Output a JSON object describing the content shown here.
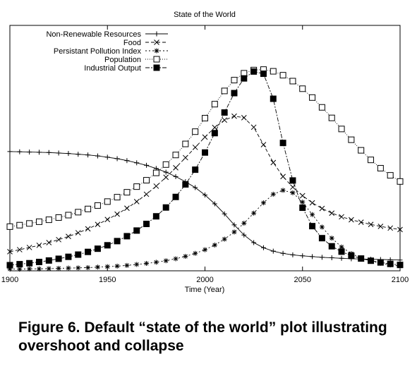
{
  "chart_data": {
    "type": "line",
    "title": "State of the World",
    "xlabel": "Time (Year)",
    "ylabel": "",
    "xlim": [
      1900,
      2100
    ],
    "ylim": [
      0,
      1
    ],
    "grid": false,
    "legend_position": "top-left",
    "x_ticks": [
      1900,
      1950,
      2000,
      2050,
      2100
    ],
    "x": [
      1900,
      1905,
      1910,
      1915,
      1920,
      1925,
      1930,
      1935,
      1940,
      1945,
      1950,
      1955,
      1960,
      1965,
      1970,
      1975,
      1980,
      1985,
      1990,
      1995,
      2000,
      2005,
      2010,
      2015,
      2020,
      2025,
      2030,
      2035,
      2040,
      2045,
      2050,
      2055,
      2060,
      2065,
      2070,
      2075,
      2080,
      2085,
      2090,
      2095,
      2100
    ],
    "series": [
      {
        "name": "Non-Renewable Resources",
        "marker": "plus",
        "values": [
          0.486,
          0.485,
          0.484,
          0.483,
          0.482,
          0.48,
          0.478,
          0.475,
          0.472,
          0.468,
          0.463,
          0.457,
          0.449,
          0.44,
          0.43,
          0.417,
          0.402,
          0.384,
          0.363,
          0.339,
          0.309,
          0.273,
          0.232,
          0.187,
          0.146,
          0.115,
          0.094,
          0.08,
          0.071,
          0.065,
          0.061,
          0.058,
          0.055,
          0.053,
          0.051,
          0.049,
          0.048,
          0.047,
          0.046,
          0.045,
          0.044
        ]
      },
      {
        "name": "Food",
        "marker": "cross",
        "values": [
          0.078,
          0.086,
          0.095,
          0.104,
          0.115,
          0.127,
          0.14,
          0.155,
          0.171,
          0.189,
          0.209,
          0.231,
          0.255,
          0.282,
          0.312,
          0.345,
          0.381,
          0.42,
          0.461,
          0.503,
          0.545,
          0.584,
          0.614,
          0.63,
          0.624,
          0.585,
          0.514,
          0.441,
          0.384,
          0.341,
          0.306,
          0.277,
          0.254,
          0.235,
          0.22,
          0.208,
          0.198,
          0.189,
          0.181,
          0.174,
          0.168
        ]
      },
      {
        "name": "Persistant Pollution Index",
        "marker": "star",
        "values": [
          0.007,
          0.007,
          0.008,
          0.008,
          0.009,
          0.01,
          0.011,
          0.012,
          0.013,
          0.015,
          0.017,
          0.019,
          0.022,
          0.026,
          0.03,
          0.035,
          0.041,
          0.049,
          0.059,
          0.071,
          0.086,
          0.105,
          0.129,
          0.158,
          0.194,
          0.235,
          0.277,
          0.312,
          0.328,
          0.318,
          0.28,
          0.229,
          0.178,
          0.133,
          0.097,
          0.07,
          0.052,
          0.04,
          0.031,
          0.024,
          0.019
        ]
      },
      {
        "name": "Population",
        "marker": "open-square",
        "values": [
          0.18,
          0.186,
          0.193,
          0.2,
          0.208,
          0.217,
          0.227,
          0.239,
          0.252,
          0.266,
          0.282,
          0.3,
          0.32,
          0.343,
          0.369,
          0.399,
          0.433,
          0.472,
          0.517,
          0.567,
          0.622,
          0.679,
          0.733,
          0.777,
          0.805,
          0.818,
          0.82,
          0.813,
          0.797,
          0.773,
          0.742,
          0.706,
          0.666,
          0.623,
          0.578,
          0.534,
          0.491,
          0.452,
          0.418,
          0.389,
          0.364
        ]
      },
      {
        "name": "Industrial Output",
        "marker": "filled-square",
        "values": [
          0.023,
          0.027,
          0.031,
          0.036,
          0.042,
          0.049,
          0.057,
          0.066,
          0.077,
          0.09,
          0.104,
          0.121,
          0.141,
          0.164,
          0.191,
          0.222,
          0.258,
          0.301,
          0.352,
          0.412,
          0.482,
          0.561,
          0.645,
          0.724,
          0.784,
          0.812,
          0.803,
          0.701,
          0.521,
          0.368,
          0.257,
          0.182,
          0.133,
          0.1,
          0.078,
          0.062,
          0.05,
          0.041,
          0.034,
          0.028,
          0.024
        ]
      }
    ]
  },
  "caption": "Figure 6. Default “state of the world” plot illustrating overshoot and collapse"
}
